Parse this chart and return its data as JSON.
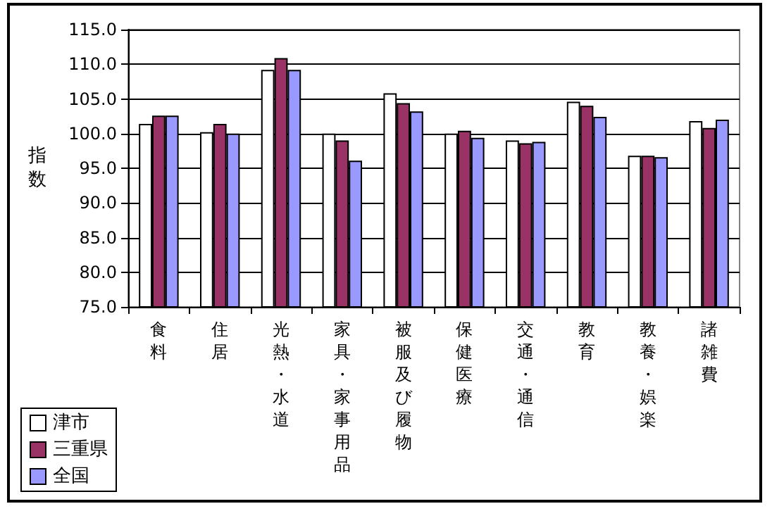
{
  "chart_data": {
    "type": "bar",
    "ylabel": "指数",
    "categories": [
      "食料",
      "住居",
      "光熱・水道",
      "家具・家事用品",
      "被服及び履物",
      "保健医療",
      "交通・通信",
      "教育",
      "教養・娯楽",
      "諸雑費"
    ],
    "series": [
      {
        "name": "津市",
        "color": "#ffffff",
        "values": [
          101.4,
          100.2,
          109.2,
          100.0,
          105.8,
          100.0,
          99.0,
          104.6,
          96.8,
          101.8
        ]
      },
      {
        "name": "三重県",
        "color": "#993366",
        "values": [
          102.6,
          101.4,
          110.9,
          99.0,
          104.4,
          100.4,
          98.6,
          104.0,
          96.8,
          100.8
        ]
      },
      {
        "name": "全国",
        "color": "#9999ff",
        "values": [
          102.6,
          100.0,
          109.2,
          96.1,
          103.2,
          99.4,
          98.8,
          102.4,
          96.6,
          102.0
        ]
      }
    ],
    "ylim": [
      75,
      115
    ],
    "yticks": [
      {
        "value": 75,
        "label": "75.0"
      },
      {
        "value": 80,
        "label": "80.0"
      },
      {
        "value": 85,
        "label": "85.0"
      },
      {
        "value": 90,
        "label": "90.0"
      },
      {
        "value": 95,
        "label": "95.0"
      },
      {
        "value": 100,
        "label": "100.0"
      },
      {
        "value": 105,
        "label": "105.0"
      },
      {
        "value": 110,
        "label": "110.0"
      },
      {
        "value": 115,
        "label": "115.0"
      }
    ],
    "grid": "y",
    "legend": "bottom left"
  }
}
